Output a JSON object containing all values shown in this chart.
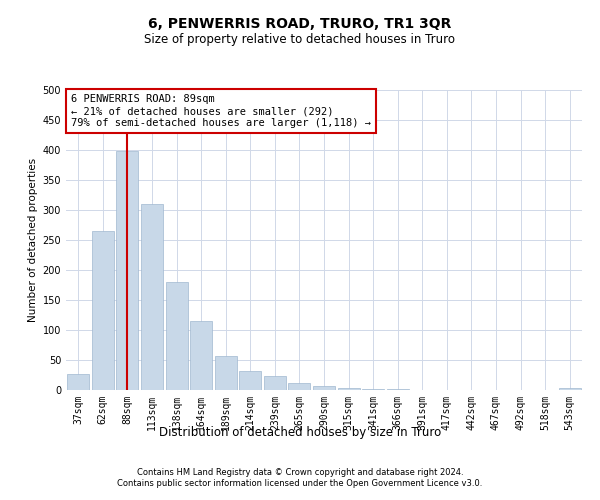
{
  "title": "6, PENWERRIS ROAD, TRURO, TR1 3QR",
  "subtitle": "Size of property relative to detached houses in Truro",
  "xlabel": "Distribution of detached houses by size in Truro",
  "ylabel": "Number of detached properties",
  "footnote1": "Contains HM Land Registry data © Crown copyright and database right 2024.",
  "footnote2": "Contains public sector information licensed under the Open Government Licence v3.0.",
  "annotation_line1": "6 PENWERRIS ROAD: 89sqm",
  "annotation_line2": "← 21% of detached houses are smaller (292)",
  "annotation_line3": "79% of semi-detached houses are larger (1,118) →",
  "bar_color": "#c8d8e8",
  "bar_edge_color": "#a0b8d0",
  "grid_color": "#d0d8e8",
  "vline_color": "#cc0000",
  "vline_x": 2,
  "categories": [
    "37sqm",
    "62sqm",
    "88sqm",
    "113sqm",
    "138sqm",
    "164sqm",
    "189sqm",
    "214sqm",
    "239sqm",
    "265sqm",
    "290sqm",
    "315sqm",
    "341sqm",
    "366sqm",
    "391sqm",
    "417sqm",
    "442sqm",
    "467sqm",
    "492sqm",
    "518sqm",
    "543sqm"
  ],
  "values": [
    27,
    265,
    398,
    310,
    180,
    115,
    57,
    32,
    24,
    12,
    6,
    4,
    1,
    1,
    0,
    0,
    0,
    0,
    0,
    0,
    4
  ],
  "ylim": [
    0,
    500
  ],
  "yticks": [
    0,
    50,
    100,
    150,
    200,
    250,
    300,
    350,
    400,
    450,
    500
  ],
  "title_fontsize": 10,
  "subtitle_fontsize": 8.5,
  "xlabel_fontsize": 8.5,
  "ylabel_fontsize": 7.5,
  "tick_fontsize": 7,
  "annotation_fontsize": 7.5,
  "footnote_fontsize": 6
}
